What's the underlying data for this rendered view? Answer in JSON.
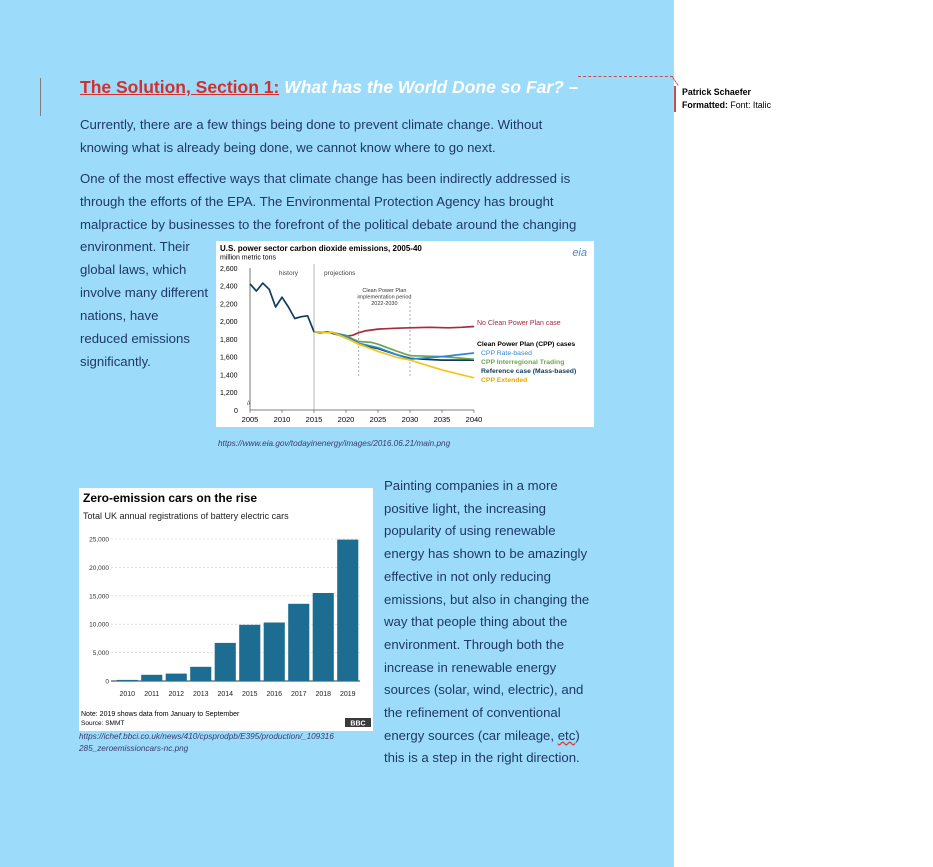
{
  "document": {
    "heading_part1": "The Solution, Section 1:",
    "heading_part2": " What has the World Done so Far? –",
    "para1": "Currently, there are a few things being done to prevent climate change. Without knowing what is already being done, we cannot know where to go next.",
    "para2_lines": [
      "One of the most effective ways that climate change has been indirectly addressed is",
      "through the efforts of the EPA. The Environmental Protection Agency has brought",
      "malpractice by businesses to the forefront of the political debate around the changing"
    ],
    "para2_wrap": [
      "environment. Their",
      "global laws, which",
      "involve many different",
      "nations, have",
      "reduced emissions",
      "significantly."
    ],
    "caption1": "https://www.eia.gov/todayinenergy/images/2016.06.21/main.png",
    "caption2_lines": [
      "https://ichef.bbci.co.uk/news/410/cpsprodpb/E395/production/_109316",
      "285_zeroemissioncars-nc.png"
    ],
    "para3_lines": [
      "Painting companies in a more",
      "positive light, the increasing",
      "popularity of using renewable",
      "energy has shown to be amazingly",
      "effective in not only reducing",
      "emissions, but also in changing the",
      "way that people thing about the",
      "environment. Through both the",
      "increase in renewable energy",
      "sources (solar, wind, electric), and",
      "the refinement of conventional"
    ],
    "para3_line12_start": "energy sources (car mileage, ",
    "para3_line12_misspelled": "etc",
    "para3_line12_end": ")",
    "para3_line13": "this is a step in the right direction."
  },
  "comment": {
    "author": "Patrick Schaefer",
    "label": "Formatted:",
    "value": " Font: Italic"
  },
  "chart_data": [
    {
      "type": "line",
      "title": "U.S. power sector carbon dioxide emissions, 2005-40",
      "ylabel": "million metric tons",
      "brand": "eia",
      "xlim": [
        2005,
        2040
      ],
      "ylim": [
        1200,
        2600
      ],
      "xticks": [
        2005,
        2010,
        2015,
        2020,
        2025,
        2030,
        2035,
        2040
      ],
      "yticks": [
        1200,
        1400,
        1600,
        1800,
        2000,
        2200,
        2400,
        2600
      ],
      "yticks_zero": "0",
      "history_label": "history",
      "projections_label": "projections",
      "divider_x": 2015,
      "annotation_lines": [
        "Clean Power Plan",
        "implementation period",
        "2022-2030"
      ],
      "implementation_period": [
        2022,
        2030
      ],
      "cpp_header": "Clean Power Plan (CPP) cases",
      "series": [
        {
          "name": "history",
          "color": "#0f3c5c",
          "x": [
            2005,
            2006,
            2007,
            2008,
            2009,
            2010,
            2011,
            2012,
            2013,
            2014,
            2015
          ],
          "y": [
            2420,
            2340,
            2430,
            2360,
            2160,
            2270,
            2160,
            2030,
            2050,
            2060,
            1880
          ]
        },
        {
          "name": "No Clean Power Plan case",
          "color": "#a62b3d",
          "x": [
            2015,
            2016,
            2017,
            2018,
            2019,
            2020,
            2021,
            2022,
            2023,
            2025,
            2028,
            2030,
            2033,
            2036,
            2038,
            2040
          ],
          "y": [
            1880,
            1870,
            1880,
            1870,
            1850,
            1830,
            1840,
            1870,
            1890,
            1910,
            1920,
            1925,
            1930,
            1925,
            1930,
            1940
          ]
        },
        {
          "name": "Reference case (Mass-based)",
          "color": "#0f3c5c",
          "x": [
            2015,
            2016,
            2017,
            2018,
            2019,
            2020,
            2021,
            2022,
            2023,
            2025,
            2028,
            2030,
            2032,
            2035,
            2040
          ],
          "y": [
            1880,
            1870,
            1880,
            1860,
            1840,
            1810,
            1780,
            1740,
            1720,
            1690,
            1620,
            1580,
            1570,
            1560,
            1560
          ]
        },
        {
          "name": "CPP Interregional Trading",
          "color": "#6aa84f",
          "x": [
            2015,
            2018,
            2020,
            2021,
            2022,
            2024,
            2025,
            2028,
            2030,
            2035,
            2040
          ],
          "y": [
            1880,
            1870,
            1840,
            1800,
            1770,
            1760,
            1740,
            1660,
            1610,
            1600,
            1570
          ]
        },
        {
          "name": "CPP Rate-based",
          "color": "#2e86d4",
          "x": [
            2015,
            2018,
            2020,
            2022,
            2025,
            2028,
            2030,
            2035,
            2040
          ],
          "y": [
            1880,
            1870,
            1830,
            1750,
            1700,
            1620,
            1570,
            1600,
            1640
          ]
        },
        {
          "name": "CPP Extended",
          "color": "#f5c518",
          "x": [
            2015,
            2018,
            2020,
            2022,
            2025,
            2028,
            2030,
            2035,
            2040
          ],
          "y": [
            1880,
            1870,
            1810,
            1740,
            1660,
            1590,
            1560,
            1450,
            1360
          ]
        }
      ]
    },
    {
      "type": "bar",
      "title": "Zero-emission cars on the rise",
      "subtitle": "Total UK annual registrations of battery electric cars",
      "categories": [
        "2010",
        "2011",
        "2012",
        "2013",
        "2014",
        "2015",
        "2016",
        "2017",
        "2018",
        "2019"
      ],
      "values": [
        200,
        1100,
        1300,
        2500,
        6700,
        9900,
        10300,
        13600,
        15500,
        24900
      ],
      "ylim": [
        0,
        25000
      ],
      "yticks": [
        0,
        5000,
        10000,
        15000,
        20000,
        25000
      ],
      "ytick_labels": [
        "0",
        "5,000",
        "10,000",
        "15,000",
        "20,000",
        "25,000"
      ],
      "bar_color": "#1d6c91",
      "note": "Note: 2019 shows data from January to September",
      "source": "Source: SMMT",
      "brand": "BBC"
    }
  ]
}
